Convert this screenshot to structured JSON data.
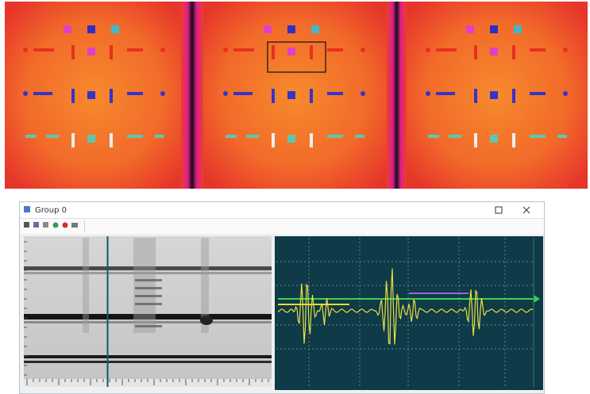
{
  "window": {
    "title": "Group 0"
  }
}
